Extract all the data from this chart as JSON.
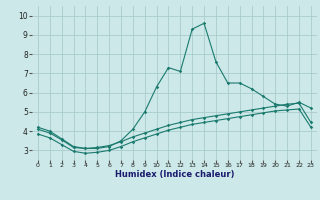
{
  "xlabel": "Humidex (Indice chaleur)",
  "xlim": [
    -0.5,
    23.5
  ],
  "ylim": [
    2.5,
    10.5
  ],
  "xticks": [
    0,
    1,
    2,
    3,
    4,
    5,
    6,
    7,
    8,
    9,
    10,
    11,
    12,
    13,
    14,
    15,
    16,
    17,
    18,
    19,
    20,
    21,
    22,
    23
  ],
  "yticks": [
    3,
    4,
    5,
    6,
    7,
    8,
    9,
    10
  ],
  "background_color": "#cce8e8",
  "grid_color": "#aacccc",
  "line_color": "#1a7a6e",
  "line1_y": [
    4.2,
    4.0,
    3.6,
    3.2,
    3.1,
    3.1,
    3.2,
    3.5,
    4.1,
    5.0,
    6.3,
    7.3,
    7.1,
    9.3,
    9.6,
    7.6,
    6.5,
    6.5,
    6.2,
    5.8,
    5.4,
    5.3,
    5.5,
    5.2
  ],
  "line2_y": [
    4.1,
    3.9,
    3.55,
    3.15,
    3.1,
    3.15,
    3.25,
    3.45,
    3.7,
    3.9,
    4.1,
    4.3,
    4.45,
    4.6,
    4.7,
    4.8,
    4.9,
    5.0,
    5.1,
    5.2,
    5.3,
    5.4,
    5.45,
    4.45
  ],
  "line3_y": [
    3.85,
    3.65,
    3.3,
    2.95,
    2.85,
    2.9,
    3.0,
    3.2,
    3.45,
    3.65,
    3.85,
    4.05,
    4.2,
    4.35,
    4.45,
    4.55,
    4.65,
    4.75,
    4.85,
    4.95,
    5.05,
    5.1,
    5.15,
    4.2
  ]
}
